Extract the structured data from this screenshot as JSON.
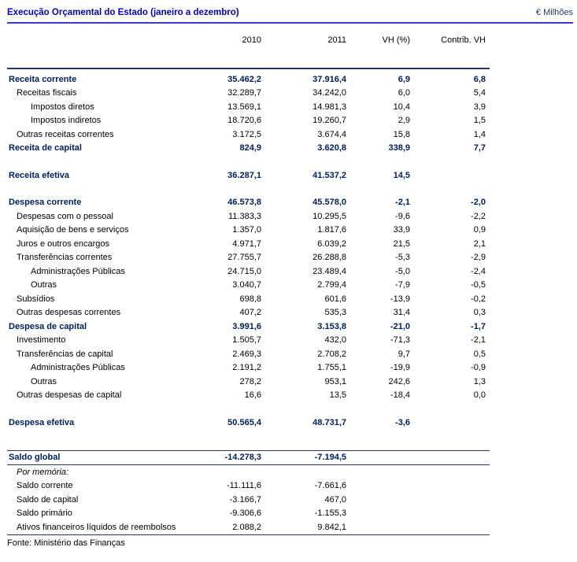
{
  "header": {
    "title": "Execução Orçamental do Estado (janeiro a dezembro)",
    "unit_label": "€ Milhões"
  },
  "columns": [
    "2010",
    "2011",
    "VH (%)",
    "Contrib. VH"
  ],
  "colors": {
    "title_blue": "#0000c8",
    "total_row_navy": "#002060",
    "title_rule_blue": "#3a3ac8",
    "table_rule_navy": "#1f3864",
    "body_text": "#000000",
    "background": "#ffffff"
  },
  "table": {
    "rows": [
      {
        "label": "Receita corrente",
        "indent": 0,
        "total": true,
        "v": [
          "35.462,2",
          "37.916,4",
          "6,9",
          "6,8"
        ]
      },
      {
        "label": "Receitas fiscais",
        "indent": 1,
        "v": [
          "32.289,7",
          "34.242,0",
          "6,0",
          "5,4"
        ]
      },
      {
        "label": "Impostos diretos",
        "indent": 2,
        "v": [
          "13.569,1",
          "14.981,3",
          "10,4",
          "3,9"
        ]
      },
      {
        "label": "Impostos indiretos",
        "indent": 2,
        "v": [
          "18.720,6",
          "19.260,7",
          "2,9",
          "1,5"
        ]
      },
      {
        "label": "Outras receitas correntes",
        "indent": 1,
        "v": [
          "3.172,5",
          "3.674,4",
          "15,8",
          "1,4"
        ]
      },
      {
        "label": "Receita de capital",
        "indent": 0,
        "total": true,
        "v": [
          "824,9",
          "3.620,8",
          "338,9",
          "7,7"
        ]
      },
      {
        "label": "Receita efetiva",
        "indent": 0,
        "total": true,
        "gap": 1,
        "v": [
          "36.287,1",
          "41.537,2",
          "14,5",
          ""
        ]
      },
      {
        "label": "Despesa corrente",
        "indent": 0,
        "total": true,
        "gap": 1,
        "v": [
          "46.573,8",
          "45.578,0",
          "-2,1",
          "-2,0"
        ]
      },
      {
        "label": "Despesas com o pessoal",
        "indent": 1,
        "v": [
          "11.383,3",
          "10.295,5",
          "-9,6",
          "-2,2"
        ]
      },
      {
        "label": "Aquisição de bens e serviços",
        "indent": 1,
        "v": [
          "1.357,0",
          "1.817,6",
          "33,9",
          "0,9"
        ]
      },
      {
        "label": "Juros e outros encargos",
        "indent": 1,
        "v": [
          "4.971,7",
          "6.039,2",
          "21,5",
          "2,1"
        ]
      },
      {
        "label": "Transferências correntes",
        "indent": 1,
        "v": [
          "27.755,7",
          "26.288,8",
          "-5,3",
          "-2,9"
        ]
      },
      {
        "label": "Administrações Públicas",
        "indent": 2,
        "v": [
          "24.715,0",
          "23.489,4",
          "-5,0",
          "-2,4"
        ]
      },
      {
        "label": "Outras",
        "indent": 2,
        "v": [
          "3.040,7",
          "2.799,4",
          "-7,9",
          "-0,5"
        ]
      },
      {
        "label": "Subsídios",
        "indent": 1,
        "v": [
          "698,8",
          "601,6",
          "-13,9",
          "-0,2"
        ]
      },
      {
        "label": "Outras despesas correntes",
        "indent": 1,
        "v": [
          "407,2",
          "535,3",
          "31,4",
          "0,3"
        ]
      },
      {
        "label": "Despesa de capital",
        "indent": 0,
        "total": true,
        "v": [
          "3.991,6",
          "3.153,8",
          "-21,0",
          "-1,7"
        ]
      },
      {
        "label": "Investimento",
        "indent": 1,
        "v": [
          "1.505,7",
          "432,0",
          "-71,3",
          "-2,1"
        ]
      },
      {
        "label": "Transferências de capital",
        "indent": 1,
        "v": [
          "2.469,3",
          "2.708,2",
          "9,7",
          "0,5"
        ]
      },
      {
        "label": "Administrações Públicas",
        "indent": 2,
        "v": [
          "2.191,2",
          "1.755,1",
          "-19,9",
          "-0,9"
        ]
      },
      {
        "label": "Outras",
        "indent": 2,
        "v": [
          "278,2",
          "953,1",
          "242,6",
          "1,3"
        ]
      },
      {
        "label": "Outras despesas de capital",
        "indent": 1,
        "v": [
          "16,6",
          "13,5",
          "-18,4",
          "0,0"
        ]
      },
      {
        "label": "Despesa efetiva",
        "indent": 0,
        "total": true,
        "gap": 1,
        "v": [
          "50.565,4",
          "48.731,7",
          "-3,6",
          ""
        ]
      },
      {
        "label": "Saldo global",
        "indent": 0,
        "total": true,
        "gap": 2,
        "bt": true,
        "bb": true,
        "v": [
          "-14.278,3",
          "-7.194,5",
          "",
          ""
        ]
      },
      {
        "label": "Por memória:",
        "indent": 1,
        "italic": true,
        "v": [
          "",
          "",
          "",
          ""
        ]
      },
      {
        "label": "Saldo corrente",
        "indent": 1,
        "v": [
          "-11.111,6",
          "-7.661,6",
          "",
          ""
        ]
      },
      {
        "label": "Saldo de capital",
        "indent": 1,
        "v": [
          "-3.166,7",
          "467,0",
          "",
          ""
        ]
      },
      {
        "label": "Saldo primário",
        "indent": 1,
        "v": [
          "-9.306,6",
          "-1.155,3",
          "",
          ""
        ]
      },
      {
        "label": "Ativos financeiros líquidos de reembolsos",
        "indent": 1,
        "bb": true,
        "v": [
          "2.088,2",
          "9.842,1",
          "",
          ""
        ]
      }
    ]
  },
  "footer": {
    "source": "Fonte: Ministério das Finanças"
  }
}
